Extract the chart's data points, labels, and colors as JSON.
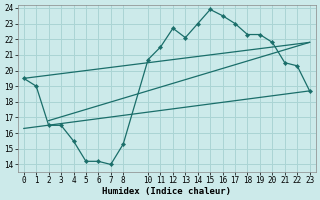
{
  "xlabel": "Humidex (Indice chaleur)",
  "bg_color": "#cceaea",
  "line_color": "#1a6e6a",
  "grid_color": "#aad4d4",
  "xlim": [
    -0.5,
    23.5
  ],
  "ylim": [
    13.5,
    24.2
  ],
  "yticks": [
    14,
    15,
    16,
    17,
    18,
    19,
    20,
    21,
    22,
    23,
    24
  ],
  "xticks": [
    0,
    1,
    2,
    3,
    4,
    5,
    6,
    7,
    8,
    10,
    11,
    12,
    13,
    14,
    15,
    16,
    17,
    18,
    19,
    20,
    21,
    22,
    23
  ],
  "main_x": [
    0,
    1,
    2,
    3,
    4,
    5,
    6,
    7,
    8,
    10,
    11,
    12,
    13,
    14,
    15,
    16,
    17,
    18,
    19,
    20,
    21,
    22,
    23
  ],
  "main_y": [
    19.5,
    19.0,
    16.5,
    16.5,
    15.5,
    14.2,
    14.2,
    14.0,
    15.3,
    20.7,
    21.5,
    22.7,
    22.1,
    23.0,
    23.9,
    23.5,
    23.0,
    22.3,
    22.3,
    21.8,
    20.5,
    20.3,
    18.7
  ],
  "upper_line_x": [
    0,
    23
  ],
  "upper_line_y": [
    19.5,
    21.8
  ],
  "lower_line_x": [
    0,
    23
  ],
  "lower_line_y": [
    16.3,
    18.7
  ],
  "diag_line_x": [
    2,
    23
  ],
  "diag_line_y": [
    16.8,
    21.8
  ],
  "tick_fontsize": 5.5,
  "label_fontsize": 6.5
}
